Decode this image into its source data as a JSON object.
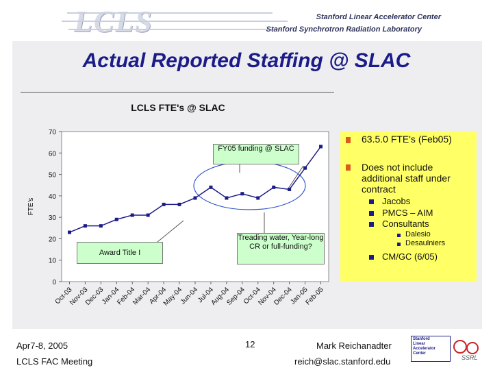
{
  "header": {
    "logo": "LCLS",
    "org_line1": "Stanford Linear Accelerator Center",
    "org_line2": "Stanford Synchrotron Radiation Laboratory"
  },
  "slide": {
    "title": "Actual Reported Staffing @ SLAC"
  },
  "chart_data": {
    "type": "line",
    "title": "LCLS FTE's @ SLAC",
    "ylabel": "FTE's",
    "xlabel": "",
    "ylim": [
      0,
      70
    ],
    "yticks": [
      "0",
      "10",
      "20",
      "30",
      "40",
      "50",
      "60",
      "70"
    ],
    "categories": [
      "Oct-03",
      "Nov-03",
      "Dec-03",
      "Jan-04",
      "Feb-04",
      "Mar-04",
      "Apr-04",
      "May-04",
      "Jun-04",
      "Jul-04",
      "Aug-04",
      "Sep-04",
      "Oct-04",
      "Nov-04",
      "Dec-04",
      "Jan-05",
      "Feb-05"
    ],
    "series": [
      {
        "values": [
          23,
          26,
          26,
          29,
          31,
          31,
          36,
          36,
          39,
          44,
          39,
          41,
          39,
          44,
          43,
          53,
          63
        ]
      }
    ],
    "grid": false,
    "line_color": "#1c1c88"
  },
  "callouts": {
    "funding": "FY05 funding @ SLAC",
    "treading": "Treading water, Year-long CR or full-funding?",
    "award": "Award Title I"
  },
  "bullets": {
    "main1": "63.5.0 FTE's (Feb05)",
    "main2": "Does not include additional staff under contract",
    "sub1": "Jacobs",
    "sub2": "PMCS – AIM",
    "sub3": "Consultants",
    "subsub1": "Dalesio",
    "subsub2": "Desaulniers",
    "sub4": "CM/GC (6/05)"
  },
  "footer": {
    "date": "Apr7-8, 2005",
    "meeting": "LCLS FAC Meeting",
    "page": "12",
    "presenter": "Mark Reichanadter",
    "email": "reich@slac.stanford.edu",
    "badge_lines": [
      "Stanford",
      "Linear",
      "Accelerator",
      "Center"
    ],
    "badge_tag": "SSRL"
  }
}
